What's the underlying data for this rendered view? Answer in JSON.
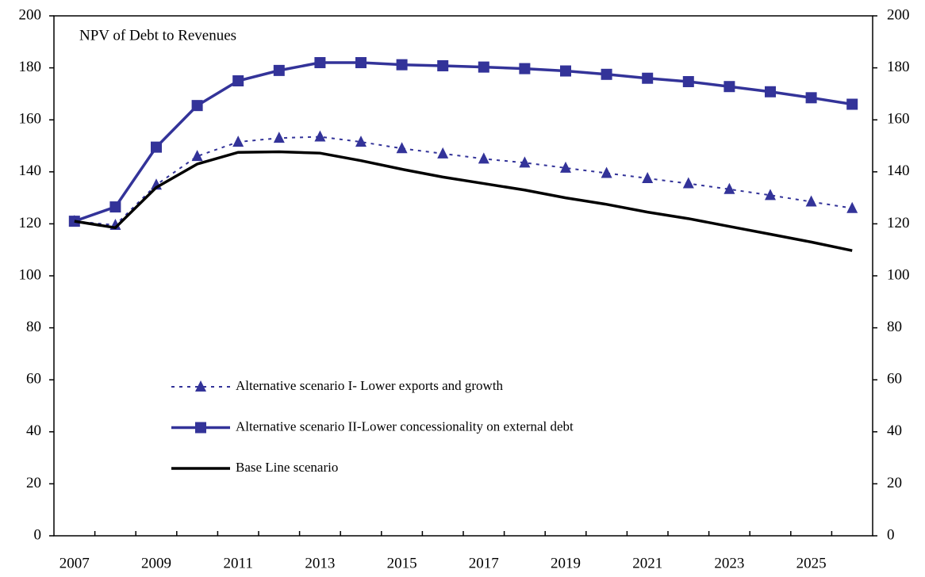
{
  "chart_data": {
    "type": "line",
    "annotation": "NPV of Debt to Revenues",
    "categories": [
      "2007",
      null,
      "2009",
      null,
      "2011",
      null,
      "2013",
      null,
      "2015",
      null,
      "2017",
      null,
      "2019",
      null,
      "2021",
      null,
      "2023",
      null,
      "2025",
      null
    ],
    "series": [
      {
        "name": "Alternative scenario I- Lower exports and growth",
        "color": "#333399",
        "marker": "triangle",
        "dash": "dotted",
        "values": [
          121,
          119.5,
          135,
          146,
          151.5,
          153,
          153.5,
          151.5,
          149,
          147,
          145,
          143.5,
          141.5,
          139.5,
          137.5,
          135.5,
          133.3,
          131,
          128.5,
          126
        ]
      },
      {
        "name": "Alternative scenario II-Lower concessionality on external debt",
        "color": "#333399",
        "marker": "square",
        "dash": "solid",
        "values": [
          121,
          126.5,
          149.5,
          165.5,
          175,
          179,
          182,
          182,
          181.2,
          180.8,
          180.3,
          179.7,
          178.8,
          177.5,
          176,
          174.7,
          172.8,
          170.8,
          168.5,
          166
        ]
      },
      {
        "name": "Base Line scenario",
        "color": "#000000",
        "marker": "none",
        "dash": "solid",
        "values": [
          121,
          118.5,
          134,
          143,
          147.5,
          147.7,
          147.2,
          144.3,
          141,
          138,
          135.5,
          133,
          130,
          127.5,
          124.5,
          122,
          119,
          116,
          113,
          109.7
        ]
      }
    ],
    "ylim": [
      0,
      200
    ],
    "yticks": [
      0,
      20,
      40,
      60,
      80,
      100,
      120,
      140,
      160,
      180,
      200
    ],
    "y2lim": [
      0,
      200
    ],
    "y2ticks": [
      0,
      20,
      40,
      60,
      80,
      100,
      120,
      140,
      160,
      180,
      200
    ],
    "grid": false,
    "legend": "center-left"
  }
}
